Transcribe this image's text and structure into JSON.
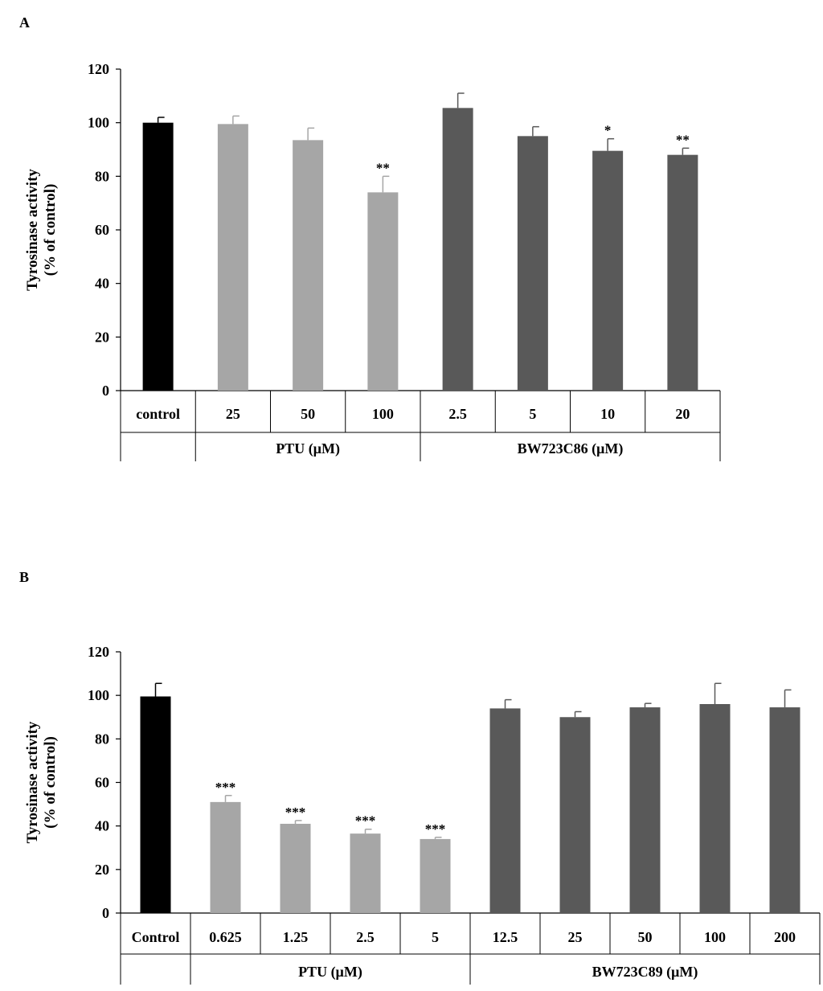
{
  "chart_data": [
    {
      "panel": "A",
      "type": "bar",
      "ylabel_line1": "Tyrosinase activity",
      "ylabel_line2": "(% of control)",
      "ylim": [
        0,
        120
      ],
      "yticks": [
        "0",
        "20",
        "40",
        "60",
        "80",
        "100",
        "120"
      ],
      "categories": [
        "control",
        "25",
        "50",
        "100",
        "2.5",
        "5",
        "10",
        "20"
      ],
      "values": [
        100,
        99.5,
        93.5,
        74,
        105.5,
        95,
        89.5,
        88
      ],
      "errors": [
        2,
        3,
        4.5,
        6,
        5.5,
        3.5,
        4.5,
        2.5
      ],
      "significance": [
        "",
        "",
        "",
        "**",
        "",
        "",
        "*",
        "**"
      ],
      "groups_of_bars": [
        "control",
        "PTU",
        "PTU",
        "PTU",
        "BW",
        "BW",
        "BW",
        "BW"
      ],
      "group_labels": [
        {
          "label": "",
          "start": 0,
          "end": 0
        },
        {
          "label": "PTU  (µM)",
          "start": 1,
          "end": 3
        },
        {
          "label": "BW723C86 (µM)",
          "start": 4,
          "end": 7
        }
      ],
      "colors": {
        "control": "#000000",
        "PTU": "#a6a6a6",
        "BW": "#595959"
      }
    },
    {
      "panel": "B",
      "type": "bar",
      "ylabel_line1": "Tyrosinase activity",
      "ylabel_line2": "(% of control)",
      "ylim": [
        0,
        120
      ],
      "yticks": [
        "0",
        "20",
        "40",
        "60",
        "80",
        "100",
        "120"
      ],
      "categories": [
        "Control",
        "0.625",
        "1.25",
        "2.5",
        "5",
        "12.5",
        "25",
        "50",
        "100",
        "200"
      ],
      "values": [
        99.5,
        51,
        41,
        36.5,
        34,
        94,
        90,
        94.5,
        96,
        94.5
      ],
      "errors": [
        6,
        3,
        1.5,
        2,
        0.8,
        4,
        2.5,
        1.8,
        9.5,
        8
      ],
      "significance": [
        "",
        "***",
        "***",
        "***",
        "***",
        "",
        "",
        "",
        "",
        ""
      ],
      "groups_of_bars": [
        "control",
        "PTU",
        "PTU",
        "PTU",
        "PTU",
        "BW",
        "BW",
        "BW",
        "BW",
        "BW"
      ],
      "group_labels": [
        {
          "label": "",
          "start": 0,
          "end": 0
        },
        {
          "label": "PTU (µM)",
          "start": 1,
          "end": 4
        },
        {
          "label": "BW723C89 (µM)",
          "start": 5,
          "end": 9
        }
      ],
      "colors": {
        "control": "#000000",
        "PTU": "#a6a6a6",
        "BW": "#595959"
      }
    }
  ]
}
